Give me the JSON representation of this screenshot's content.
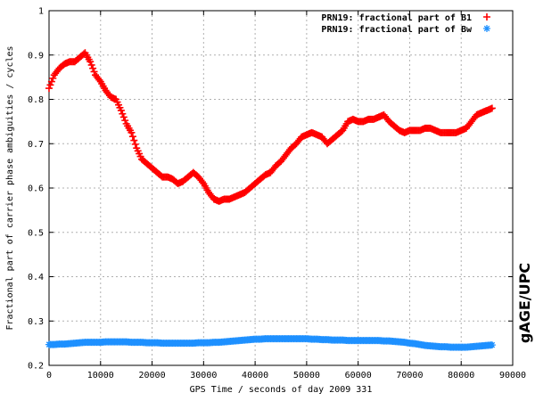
{
  "chart_data": {
    "type": "scatter",
    "title": "",
    "xlabel": "GPS Time / seconds of day 2009 331",
    "ylabel": "Fractional part of carrier phase ambiguities / cycles",
    "xlim": [
      0,
      90000
    ],
    "ylim": [
      0.2,
      1.0
    ],
    "x_ticks": [
      0,
      10000,
      20000,
      30000,
      40000,
      50000,
      60000,
      70000,
      80000,
      90000
    ],
    "y_ticks": [
      0.2,
      0.3,
      0.4,
      0.5,
      0.6,
      0.7,
      0.8,
      0.9,
      1.0
    ],
    "x_tick_labels": [
      "0",
      "10000",
      "20000",
      "30000",
      "40000",
      "50000",
      "60000",
      "70000",
      "80000",
      "90000"
    ],
    "y_tick_labels": [
      "0.2",
      "0.3",
      "0.4",
      "0.5",
      "0.6",
      "0.7",
      "0.8",
      "0.9",
      "1"
    ],
    "grid": true,
    "legend_position": "top-right",
    "series": [
      {
        "name": "PRN19: fractional part of B1",
        "marker": "+",
        "color": "#ff0000",
        "x": [
          0,
          1000,
          2000,
          3000,
          4000,
          5000,
          6000,
          7000,
          8000,
          9000,
          10000,
          11000,
          12000,
          13000,
          14000,
          15000,
          16000,
          17000,
          18000,
          19000,
          20000,
          21000,
          22000,
          23000,
          24000,
          25000,
          26000,
          27000,
          28000,
          29000,
          30000,
          31000,
          32000,
          33000,
          34000,
          35000,
          36000,
          37000,
          38000,
          39000,
          40000,
          41000,
          42000,
          43000,
          44000,
          45000,
          46000,
          47000,
          48000,
          49000,
          50000,
          51000,
          52000,
          53000,
          54000,
          55000,
          56000,
          57000,
          58000,
          59000,
          60000,
          61000,
          62000,
          63000,
          64000,
          65000,
          66000,
          67000,
          68000,
          69000,
          70000,
          71000,
          72000,
          73000,
          74000,
          75000,
          76000,
          77000,
          78000,
          79000,
          80000,
          81000,
          82000,
          83000,
          84000,
          85000,
          86000
        ],
        "y": [
          0.825,
          0.855,
          0.87,
          0.88,
          0.885,
          0.885,
          0.895,
          0.905,
          0.885,
          0.855,
          0.84,
          0.82,
          0.805,
          0.8,
          0.775,
          0.745,
          0.725,
          0.69,
          0.665,
          0.655,
          0.645,
          0.635,
          0.625,
          0.625,
          0.62,
          0.61,
          0.615,
          0.625,
          0.635,
          0.625,
          0.61,
          0.59,
          0.575,
          0.57,
          0.575,
          0.575,
          0.58,
          0.585,
          0.59,
          0.6,
          0.61,
          0.62,
          0.63,
          0.635,
          0.65,
          0.66,
          0.675,
          0.69,
          0.7,
          0.715,
          0.72,
          0.725,
          0.72,
          0.715,
          0.7,
          0.71,
          0.72,
          0.73,
          0.75,
          0.755,
          0.75,
          0.75,
          0.755,
          0.755,
          0.76,
          0.765,
          0.75,
          0.74,
          0.73,
          0.725,
          0.73,
          0.73,
          0.73,
          0.735,
          0.735,
          0.73,
          0.725,
          0.725,
          0.725,
          0.725,
          0.73,
          0.735,
          0.75,
          0.765,
          0.77,
          0.775,
          0.78
        ]
      },
      {
        "name": "PRN19: fractional part of Bw",
        "marker": "*",
        "color": "#1e90ff",
        "x": [
          0,
          1000,
          2000,
          3000,
          4000,
          5000,
          6000,
          7000,
          8000,
          9000,
          10000,
          11000,
          12000,
          13000,
          14000,
          15000,
          16000,
          17000,
          18000,
          19000,
          20000,
          21000,
          22000,
          23000,
          24000,
          25000,
          26000,
          27000,
          28000,
          29000,
          30000,
          31000,
          32000,
          33000,
          34000,
          35000,
          36000,
          37000,
          38000,
          39000,
          40000,
          41000,
          42000,
          43000,
          44000,
          45000,
          46000,
          47000,
          48000,
          49000,
          50000,
          51000,
          52000,
          53000,
          54000,
          55000,
          56000,
          57000,
          58000,
          59000,
          60000,
          61000,
          62000,
          63000,
          64000,
          65000,
          66000,
          67000,
          68000,
          69000,
          70000,
          71000,
          72000,
          73000,
          74000,
          75000,
          76000,
          77000,
          78000,
          79000,
          80000,
          81000,
          82000,
          83000,
          84000,
          85000,
          86000
        ],
        "y": [
          0.247,
          0.247,
          0.248,
          0.248,
          0.249,
          0.25,
          0.251,
          0.252,
          0.252,
          0.252,
          0.252,
          0.253,
          0.253,
          0.253,
          0.253,
          0.253,
          0.252,
          0.252,
          0.252,
          0.251,
          0.251,
          0.251,
          0.25,
          0.25,
          0.25,
          0.25,
          0.25,
          0.25,
          0.25,
          0.251,
          0.251,
          0.251,
          0.252,
          0.252,
          0.253,
          0.254,
          0.255,
          0.256,
          0.257,
          0.258,
          0.259,
          0.259,
          0.26,
          0.26,
          0.26,
          0.26,
          0.26,
          0.26,
          0.26,
          0.26,
          0.26,
          0.259,
          0.259,
          0.258,
          0.258,
          0.257,
          0.257,
          0.257,
          0.256,
          0.256,
          0.256,
          0.256,
          0.256,
          0.256,
          0.256,
          0.255,
          0.255,
          0.254,
          0.253,
          0.252,
          0.25,
          0.249,
          0.247,
          0.245,
          0.244,
          0.243,
          0.242,
          0.242,
          0.241,
          0.241,
          0.241,
          0.241,
          0.242,
          0.243,
          0.244,
          0.245,
          0.246
        ]
      }
    ]
  },
  "branding": {
    "watermark": "gAGE/UPC"
  }
}
